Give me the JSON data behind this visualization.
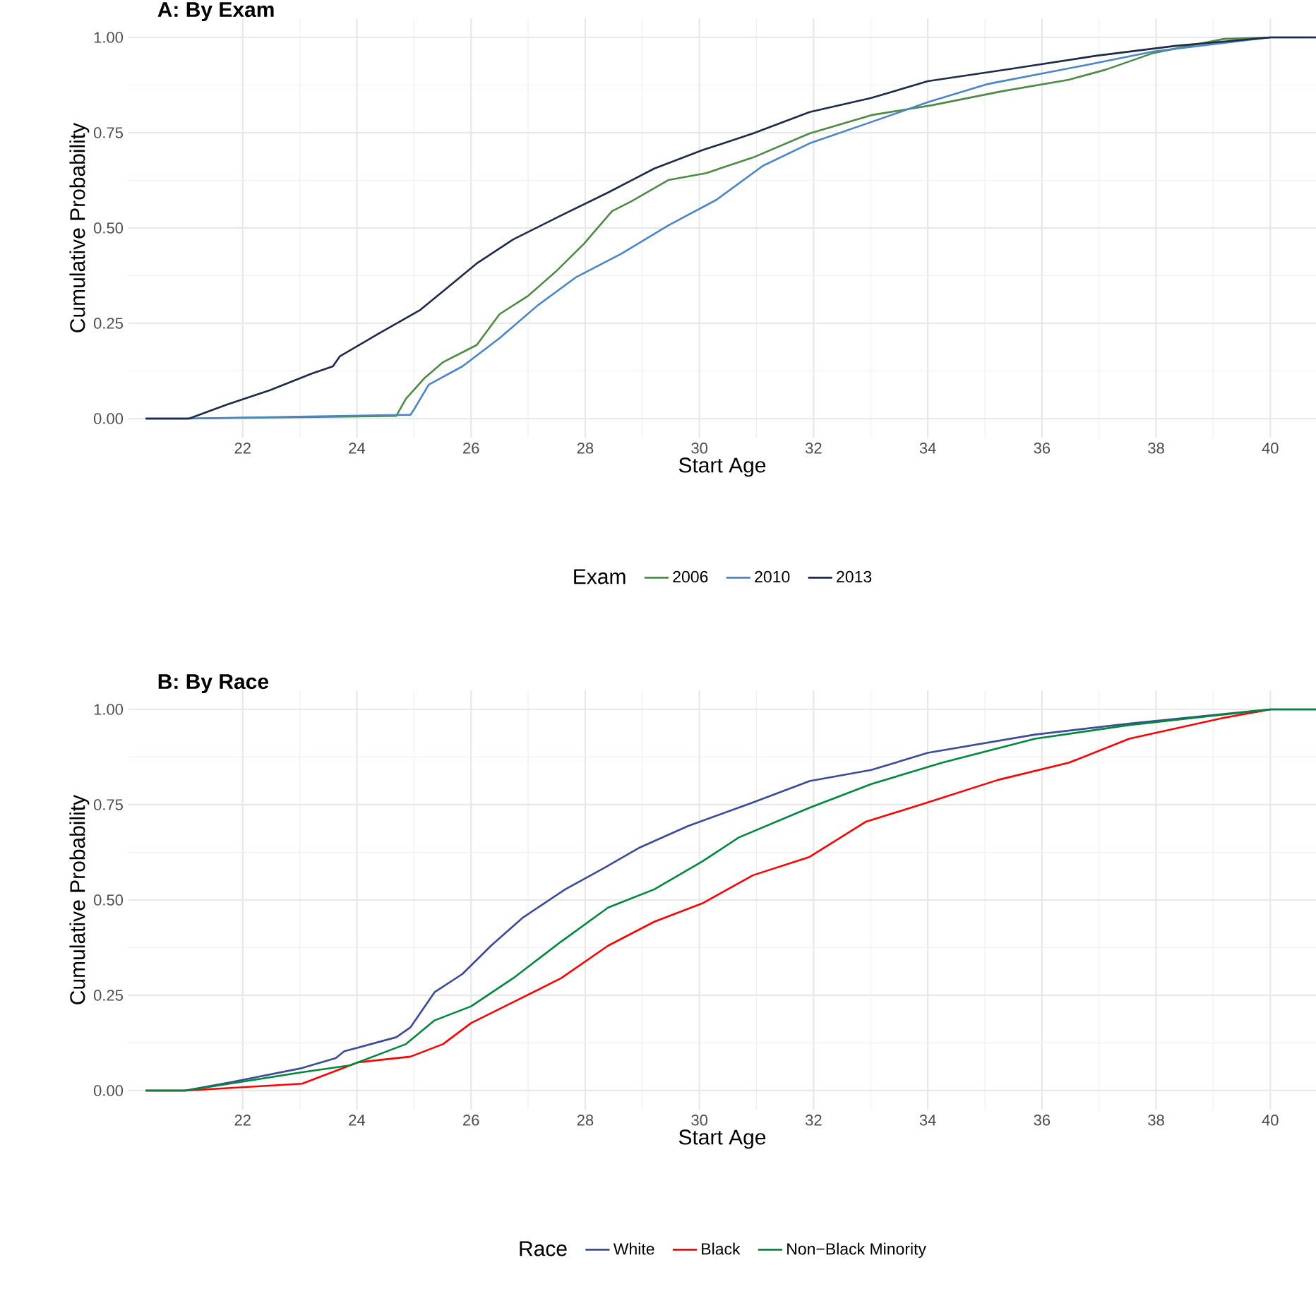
{
  "chart_data": [
    {
      "type": "line",
      "title": "A: By Exam",
      "xlabel": "Start Age",
      "ylabel": "Cumulative Probability",
      "legend_title": "Exam",
      "legend": "bottom",
      "grid": true,
      "xlim": [
        20.0,
        40.8
      ],
      "ylim": [
        -0.05,
        1.05
      ],
      "xticks": [
        22,
        24,
        26,
        28,
        30,
        32,
        34,
        36,
        38,
        40
      ],
      "yticks": [
        {
          "value": 0,
          "label": "0.00"
        },
        {
          "value": 0.25,
          "label": "0.25"
        },
        {
          "value": 0.5,
          "label": "0.50"
        },
        {
          "value": 0.75,
          "label": "0.75"
        },
        {
          "value": 1,
          "label": "1.00"
        }
      ],
      "series": [
        {
          "name": "2006",
          "color": "#4f8a45",
          "x": [
            20.3,
            21.0,
            24.69,
            24.86,
            25.19,
            25.51,
            26.1,
            26.5,
            27.0,
            27.48,
            27.98,
            28.47,
            28.81,
            29.46,
            30.12,
            30.94,
            31.93,
            33.01,
            34.07,
            35.31,
            36.47,
            37.11,
            37.95,
            39.19,
            40.0
          ],
          "values": [
            0,
            0,
            0.007,
            0.052,
            0.107,
            0.148,
            0.193,
            0.274,
            0.322,
            0.385,
            0.459,
            0.544,
            0.57,
            0.626,
            0.644,
            0.685,
            0.748,
            0.796,
            0.822,
            0.859,
            0.889,
            0.915,
            0.959,
            0.996,
            1
          ]
        },
        {
          "name": "2010",
          "color": "#4a86c8",
          "x": [
            20.3,
            21.0,
            24.94,
            25.01,
            25.26,
            25.85,
            26.5,
            27.16,
            27.83,
            28.64,
            29.46,
            30.3,
            31.11,
            31.93,
            33.01,
            34.0,
            35.06,
            36.72,
            37.95,
            40.0,
            40.8
          ],
          "values": [
            0,
            0,
            0.01,
            0.026,
            0.089,
            0.137,
            0.211,
            0.296,
            0.37,
            0.433,
            0.507,
            0.574,
            0.663,
            0.722,
            0.778,
            0.83,
            0.878,
            0.926,
            0.963,
            1,
            1
          ]
        },
        {
          "name": "2013",
          "color": "#1f2a4a",
          "x": [
            20.3,
            21.06,
            21.73,
            22.47,
            23.21,
            23.58,
            23.7,
            24.37,
            25.11,
            25.5,
            26.1,
            26.74,
            27.58,
            28.4,
            29.21,
            30.05,
            30.94,
            31.93,
            33.01,
            34.0,
            35.48,
            36.96,
            38.35,
            40.0,
            40.8
          ],
          "values": [
            0,
            0,
            0.037,
            0.074,
            0.118,
            0.137,
            0.163,
            0.222,
            0.285,
            0.333,
            0.407,
            0.47,
            0.533,
            0.593,
            0.656,
            0.704,
            0.748,
            0.804,
            0.841,
            0.885,
            0.918,
            0.952,
            0.978,
            1,
            1
          ]
        }
      ]
    },
    {
      "type": "line",
      "title": "B: By Race",
      "xlabel": "Start Age",
      "ylabel": "Cumulative Probability",
      "legend_title": "Race",
      "legend": "bottom",
      "grid": true,
      "xlim": [
        20.0,
        40.8
      ],
      "ylim": [
        -0.05,
        1.05
      ],
      "xticks": [
        22,
        24,
        26,
        28,
        30,
        32,
        34,
        36,
        38,
        40
      ],
      "yticks": [
        {
          "value": 0,
          "label": "0.00"
        },
        {
          "value": 0.25,
          "label": "0.25"
        },
        {
          "value": 0.5,
          "label": "0.50"
        },
        {
          "value": 0.75,
          "label": "0.75"
        },
        {
          "value": 1,
          "label": "1.00"
        }
      ],
      "series": [
        {
          "name": "White",
          "color": "#3c4a9a",
          "x": [
            20.3,
            20.99,
            21.8,
            23.04,
            23.63,
            23.78,
            24.69,
            24.94,
            25.36,
            25.85,
            26.35,
            26.91,
            27.65,
            28.32,
            28.96,
            29.8,
            30.94,
            31.93,
            33.01,
            34.0,
            35.88,
            37.53,
            40.0,
            40.8
          ],
          "values": [
            0,
            0,
            0.022,
            0.059,
            0.085,
            0.103,
            0.14,
            0.166,
            0.258,
            0.306,
            0.38,
            0.454,
            0.528,
            0.583,
            0.638,
            0.694,
            0.756,
            0.812,
            0.841,
            0.886,
            0.934,
            0.963,
            1,
            1
          ]
        },
        {
          "name": "Black",
          "color": "#ff0000",
          "x": [
            20.3,
            21.0,
            23.04,
            24.02,
            24.94,
            25.51,
            26.0,
            26.74,
            27.58,
            28.4,
            29.21,
            30.05,
            30.94,
            31.93,
            32.91,
            34.0,
            35.23,
            36.47,
            37.53,
            39.19,
            40.0
          ],
          "values": [
            0,
            0,
            0.018,
            0.074,
            0.089,
            0.122,
            0.177,
            0.232,
            0.295,
            0.38,
            0.443,
            0.491,
            0.565,
            0.613,
            0.705,
            0.756,
            0.815,
            0.86,
            0.923,
            0.978,
            1
          ]
        },
        {
          "name": "Non−Black Minority",
          "color": "#00873e",
          "x": [
            20.3,
            21.0,
            23.04,
            23.88,
            24.86,
            25.36,
            26.0,
            26.74,
            27.58,
            28.4,
            29.21,
            30.05,
            30.69,
            31.93,
            33.01,
            34.25,
            35.88,
            37.53,
            40.0,
            40.8
          ],
          "values": [
            0,
            0,
            0.048,
            0.066,
            0.122,
            0.184,
            0.221,
            0.295,
            0.391,
            0.48,
            0.528,
            0.601,
            0.664,
            0.742,
            0.804,
            0.86,
            0.923,
            0.959,
            1,
            1
          ]
        }
      ]
    }
  ]
}
